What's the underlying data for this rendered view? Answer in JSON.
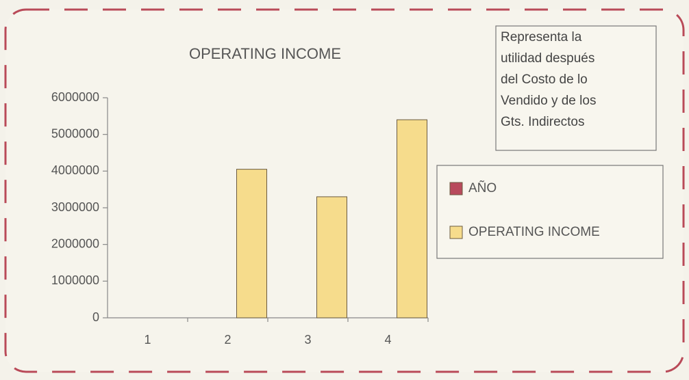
{
  "chart_data": {
    "type": "bar",
    "title": "OPERATING INCOME",
    "categories": [
      "1",
      "2",
      "3",
      "4"
    ],
    "series": [
      {
        "name": "AÑO",
        "color": "#b84a5c",
        "values": [
          0,
          0,
          0,
          0
        ]
      },
      {
        "name": "OPERATING INCOME",
        "color": "#f6dc8c",
        "values": [
          0,
          4050000,
          3300000,
          5400000
        ]
      }
    ],
    "ylim": [
      0,
      6000000
    ],
    "yticks": [
      0,
      1000000,
      2000000,
      3000000,
      4000000,
      5000000,
      6000000
    ],
    "legend": "right",
    "annotation": [
      "Representa la",
      "utilidad después",
      "del Costo de lo",
      "Vendido y de los",
      "Gts. Indirectos"
    ]
  }
}
